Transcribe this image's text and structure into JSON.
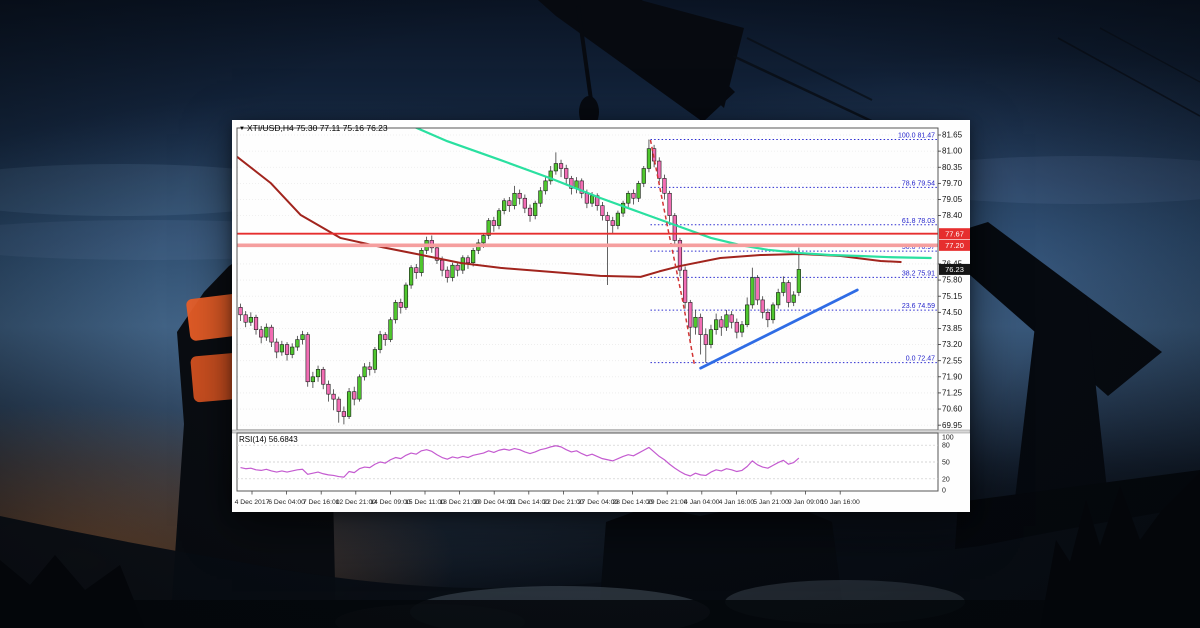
{
  "window": {
    "marker": "▼",
    "title": "XTI/USD,H4 75.30 77.11 75.16 76.23"
  },
  "chart_data": {
    "type": "candlestick",
    "symbol": "XTI/USD",
    "timeframe": "H4",
    "current_bar": {
      "open": 75.3,
      "high": 77.11,
      "low": 75.16,
      "close": 76.23
    },
    "current_price_badge": "76.23",
    "price_ticks": [
      "81.65",
      "81.00",
      "80.35",
      "79.70",
      "79.05",
      "78.40",
      "76.45",
      "75.80",
      "75.15",
      "74.50",
      "73.85",
      "73.20",
      "72.55",
      "71.90",
      "71.25",
      "70.60",
      "69.95"
    ],
    "horizontal_lines": [
      {
        "price": 77.67,
        "label": "77.67",
        "color": "#e62e2e",
        "width": 1.8
      },
      {
        "price": 77.2,
        "label": "77.20",
        "color": "#f59e9e",
        "width": 3.6
      }
    ],
    "fibonacci": {
      "start_bar": 79.3,
      "color": "#2b2bd0",
      "levels": [
        {
          "label": "100.0 81.47",
          "price": 81.47
        },
        {
          "label": "78.6 79.54",
          "price": 79.54
        },
        {
          "label": "61.8 78.03",
          "price": 78.03
        },
        {
          "label": "50.0 76.97",
          "price": 76.97
        },
        {
          "label": "38.2 75.91",
          "price": 75.91
        },
        {
          "label": "23.6 74.59",
          "price": 74.59
        },
        {
          "label": "0.0 72.47",
          "price": 72.47
        }
      ]
    },
    "ma_fast": {
      "name": "ma-fast-teal",
      "color": "#2ae0a0",
      "points": [
        [
          31.9,
          82.13
        ],
        [
          40,
          81.4
        ],
        [
          50.3,
          80.64
        ],
        [
          60,
          79.9
        ],
        [
          69.6,
          79.11
        ],
        [
          77,
          78.55
        ],
        [
          85.1,
          77.94
        ],
        [
          91,
          77.5
        ],
        [
          96.7,
          77.21
        ],
        [
          102,
          77.02
        ],
        [
          108.3,
          76.89
        ],
        [
          114,
          76.81
        ],
        [
          119.9,
          76.77
        ],
        [
          126,
          76.72
        ],
        [
          133.5,
          76.69
        ]
      ]
    },
    "ma_slow": {
      "name": "ma-slow-maroon",
      "color": "#a1241d",
      "points": [
        [
          -0.6,
          80.76
        ],
        [
          5.8,
          79.72
        ],
        [
          11.6,
          78.43
        ],
        [
          19.3,
          77.5
        ],
        [
          27.1,
          77.14
        ],
        [
          34.8,
          76.82
        ],
        [
          42.6,
          76.49
        ],
        [
          50.3,
          76.29
        ],
        [
          60,
          76.13
        ],
        [
          69.6,
          75.97
        ],
        [
          77.4,
          75.93
        ],
        [
          81,
          76.15
        ],
        [
          85.1,
          76.37
        ],
        [
          92.8,
          76.69
        ],
        [
          100.6,
          76.81
        ],
        [
          108.3,
          76.85
        ],
        [
          116.1,
          76.77
        ],
        [
          123.8,
          76.57
        ],
        [
          127.7,
          76.53
        ]
      ]
    },
    "trendline_up": {
      "color": "#2f6ce5",
      "points": [
        [
          89,
          72.25
        ],
        [
          119.3,
          75.4
        ]
      ]
    },
    "crash_line": {
      "color": "#d23434",
      "points": [
        [
          79.3,
          81.45
        ],
        [
          82.8,
          77.74
        ],
        [
          85.5,
          75.0
        ],
        [
          87.8,
          72.38
        ]
      ]
    },
    "candle_colors": {
      "up": "#4fc72e",
      "down": "#f26db4",
      "outline": "#1c1c1c",
      "wick": "#3a3a3a"
    },
    "candles": [
      [
        74.7,
        74.85,
        74.15,
        74.4
      ],
      [
        74.4,
        74.55,
        73.9,
        74.1
      ],
      [
        74.1,
        74.5,
        73.95,
        74.3
      ],
      [
        74.3,
        74.4,
        73.6,
        73.8
      ],
      [
        73.8,
        73.95,
        73.25,
        73.5
      ],
      [
        73.5,
        74.05,
        73.35,
        73.9
      ],
      [
        73.9,
        74.0,
        73.1,
        73.3
      ],
      [
        73.3,
        73.45,
        72.65,
        72.9
      ],
      [
        72.9,
        73.35,
        72.75,
        73.2
      ],
      [
        73.2,
        73.3,
        72.55,
        72.8
      ],
      [
        72.8,
        73.25,
        72.65,
        73.1
      ],
      [
        73.1,
        73.55,
        72.95,
        73.4
      ],
      [
        73.4,
        73.75,
        73.2,
        73.6
      ],
      [
        73.6,
        73.7,
        71.5,
        71.7
      ],
      [
        71.7,
        72.1,
        71.45,
        71.9
      ],
      [
        71.9,
        72.35,
        71.7,
        72.2
      ],
      [
        72.2,
        72.3,
        71.4,
        71.6
      ],
      [
        71.6,
        71.75,
        70.9,
        71.2
      ],
      [
        71.2,
        71.4,
        70.55,
        71.0
      ],
      [
        71.0,
        71.1,
        70.05,
        70.5
      ],
      [
        70.5,
        70.7,
        69.98,
        70.3
      ],
      [
        70.3,
        71.45,
        70.2,
        71.3
      ],
      [
        71.3,
        71.5,
        70.75,
        71.0
      ],
      [
        71.0,
        72.0,
        70.9,
        71.9
      ],
      [
        71.9,
        72.45,
        71.75,
        72.3
      ],
      [
        72.3,
        72.5,
        71.95,
        72.2
      ],
      [
        72.2,
        73.1,
        72.05,
        73.0
      ],
      [
        73.0,
        73.75,
        72.85,
        73.6
      ],
      [
        73.6,
        73.7,
        73.15,
        73.4
      ],
      [
        73.4,
        74.3,
        73.3,
        74.2
      ],
      [
        74.2,
        75.0,
        74.05,
        74.9
      ],
      [
        74.9,
        75.05,
        74.45,
        74.7
      ],
      [
        74.7,
        75.7,
        74.6,
        75.6
      ],
      [
        75.6,
        76.4,
        75.45,
        76.3
      ],
      [
        76.3,
        76.45,
        75.85,
        76.1
      ],
      [
        76.1,
        77.1,
        75.95,
        77.0
      ],
      [
        77.0,
        77.55,
        76.85,
        77.4
      ],
      [
        77.4,
        77.6,
        76.9,
        77.1
      ],
      [
        77.1,
        77.25,
        76.45,
        76.6
      ],
      [
        76.6,
        76.75,
        75.95,
        76.2
      ],
      [
        76.2,
        76.35,
        75.7,
        75.9
      ],
      [
        75.9,
        76.5,
        75.75,
        76.4
      ],
      [
        76.4,
        76.55,
        75.95,
        76.2
      ],
      [
        76.2,
        76.8,
        76.05,
        76.7
      ],
      [
        76.7,
        76.8,
        76.25,
        76.5
      ],
      [
        76.5,
        77.1,
        76.35,
        77.0
      ],
      [
        77.0,
        77.45,
        76.85,
        77.3
      ],
      [
        77.3,
        77.7,
        77.1,
        77.6
      ],
      [
        77.6,
        78.3,
        77.45,
        78.2
      ],
      [
        78.2,
        78.35,
        77.75,
        78.0
      ],
      [
        78.0,
        78.7,
        77.85,
        78.6
      ],
      [
        78.6,
        79.1,
        78.45,
        79.0
      ],
      [
        79.0,
        79.15,
        78.55,
        78.8
      ],
      [
        78.8,
        79.6,
        78.65,
        79.3
      ],
      [
        79.3,
        79.45,
        78.85,
        79.1
      ],
      [
        79.1,
        79.25,
        78.5,
        78.7
      ],
      [
        78.7,
        78.85,
        78.15,
        78.4
      ],
      [
        78.4,
        79.0,
        78.25,
        78.9
      ],
      [
        78.9,
        79.55,
        78.75,
        79.4
      ],
      [
        79.4,
        79.95,
        79.25,
        79.8
      ],
      [
        79.8,
        80.4,
        79.65,
        80.2
      ],
      [
        80.2,
        80.95,
        80.05,
        80.5
      ],
      [
        80.5,
        80.65,
        79.95,
        80.3
      ],
      [
        80.3,
        80.45,
        79.65,
        79.9
      ],
      [
        79.9,
        80.0,
        79.25,
        79.5
      ],
      [
        79.5,
        79.95,
        79.3,
        79.8
      ],
      [
        79.8,
        79.9,
        79.1,
        79.3
      ],
      [
        79.3,
        79.45,
        78.7,
        78.9
      ],
      [
        78.9,
        79.35,
        78.75,
        79.2
      ],
      [
        79.2,
        79.3,
        78.6,
        78.8
      ],
      [
        78.8,
        78.95,
        78.2,
        78.4
      ],
      [
        78.4,
        78.55,
        75.6,
        78.2
      ],
      [
        78.2,
        78.35,
        77.7,
        78.0
      ],
      [
        78.0,
        78.6,
        77.85,
        78.5
      ],
      [
        78.5,
        79.0,
        78.35,
        78.9
      ],
      [
        78.9,
        79.4,
        78.75,
        79.3
      ],
      [
        79.3,
        79.45,
        78.85,
        79.1
      ],
      [
        79.1,
        79.8,
        78.95,
        79.7
      ],
      [
        79.7,
        80.4,
        79.55,
        80.3
      ],
      [
        80.3,
        81.47,
        80.15,
        81.1
      ],
      [
        81.1,
        81.25,
        80.35,
        80.6
      ],
      [
        80.6,
        80.75,
        79.7,
        79.9
      ],
      [
        79.9,
        80.05,
        79.05,
        79.3
      ],
      [
        79.3,
        79.4,
        78.15,
        78.4
      ],
      [
        78.4,
        78.5,
        77.15,
        77.4
      ],
      [
        77.4,
        77.5,
        75.95,
        76.2
      ],
      [
        76.2,
        76.35,
        74.65,
        74.9
      ],
      [
        74.9,
        75.0,
        73.3,
        73.9
      ],
      [
        73.9,
        74.6,
        73.6,
        74.3
      ],
      [
        74.3,
        74.45,
        72.8,
        73.6
      ],
      [
        73.6,
        73.85,
        72.47,
        73.2
      ],
      [
        73.2,
        74.0,
        73.05,
        73.8
      ],
      [
        73.8,
        74.45,
        73.6,
        74.2
      ],
      [
        74.2,
        74.35,
        73.55,
        73.9
      ],
      [
        73.9,
        74.6,
        73.75,
        74.4
      ],
      [
        74.4,
        74.55,
        73.85,
        74.1
      ],
      [
        74.1,
        74.25,
        73.45,
        73.7
      ],
      [
        73.7,
        74.15,
        73.5,
        74.0
      ],
      [
        74.0,
        75.1,
        73.9,
        74.8
      ],
      [
        74.8,
        76.3,
        74.65,
        75.9
      ],
      [
        75.9,
        76.0,
        74.8,
        75.0
      ],
      [
        75.0,
        75.15,
        74.25,
        74.5
      ],
      [
        74.5,
        74.65,
        73.9,
        74.2
      ],
      [
        74.2,
        74.9,
        74.05,
        74.8
      ],
      [
        74.8,
        75.45,
        74.65,
        75.3
      ],
      [
        75.3,
        75.95,
        75.15,
        75.7
      ],
      [
        75.7,
        75.8,
        74.7,
        74.9
      ],
      [
        74.9,
        75.35,
        74.75,
        75.2
      ],
      [
        75.3,
        77.11,
        75.16,
        76.23
      ]
    ],
    "rsi": {
      "label": "RSI(14) 56.6843",
      "period": 14,
      "value": 56.6843,
      "color": "#c45bd0",
      "scale_labels": [
        "100",
        "80",
        "50",
        "20",
        "0"
      ],
      "guide_levels": [
        80,
        50,
        20
      ],
      "values": [
        40,
        38,
        39,
        36,
        35,
        37,
        34,
        32,
        34,
        32,
        34,
        36,
        37,
        28,
        30,
        32,
        29,
        27,
        26,
        24,
        23,
        33,
        31,
        38,
        41,
        40,
        46,
        50,
        48,
        54,
        58,
        56,
        62,
        66,
        64,
        70,
        72,
        69,
        63,
        58,
        55,
        59,
        57,
        60,
        58,
        62,
        64,
        66,
        70,
        67,
        71,
        73,
        71,
        74,
        72,
        68,
        65,
        68,
        72,
        74,
        77,
        79,
        77,
        72,
        68,
        70,
        65,
        61,
        64,
        60,
        56,
        54,
        52,
        56,
        60,
        63,
        61,
        66,
        71,
        76,
        68,
        60,
        54,
        46,
        39,
        33,
        28,
        25,
        30,
        27,
        26,
        32,
        36,
        34,
        38,
        36,
        33,
        35,
        42,
        52,
        45,
        41,
        39,
        44,
        49,
        53,
        46,
        49,
        57
      ]
    },
    "time_labels": [
      "4 Dec 2017",
      "6 Dec 04:00",
      "7 Dec 16:00",
      "12 Dec 21:00",
      "14 Dec 09:00",
      "15 Dec 11:00",
      "18 Dec 21:00",
      "20 Dec 04:00",
      "21 Dec 14:00",
      "22 Dec 21:00",
      "27 Dec 04:00",
      "28 Dec 14:00",
      "29 Dec 21:00",
      "4 Jan 04:00",
      "4 Jan 16:00",
      "5 Jan 21:00",
      "9 Jan 09:00",
      "10 Jan 16:00"
    ]
  }
}
